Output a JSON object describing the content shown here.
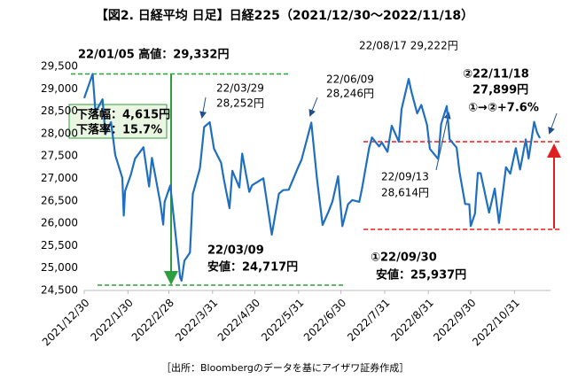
{
  "chart_data": {
    "type": "line",
    "title": "【図2. 日経平均 日足】日経225（2021/12/30～2022/11/18）",
    "source": "［出所：Bloombergのデータを基にアイザワ証券作成］",
    "xlim": [
      "2021/12/30",
      "2022/11/18"
    ],
    "xticks": [
      "2021/12/30",
      "2022/1/30",
      "2022/2/28",
      "2022/3/31",
      "2022/4/30",
      "2022/5/31",
      "2022/6/30",
      "2022/7/31",
      "2022/8/31",
      "2022/9/30",
      "2022/10/31"
    ],
    "ylim": [
      24500,
      29500
    ],
    "yticks": [
      {
        "value": 24500,
        "label": "24,500"
      },
      {
        "value": 25000,
        "label": "25,000"
      },
      {
        "value": 25500,
        "label": "25,500"
      },
      {
        "value": 26000,
        "label": "26,000"
      },
      {
        "value": 26500,
        "label": "26,500"
      },
      {
        "value": 27000,
        "label": "27,000"
      },
      {
        "value": 27500,
        "label": "27,500"
      },
      {
        "value": 28000,
        "label": "28,000"
      },
      {
        "value": 28500,
        "label": "28,500"
      },
      {
        "value": 29000,
        "label": "29,000"
      },
      {
        "value": 29500,
        "label": "29,500"
      }
    ],
    "x": [
      "2021/12/30",
      "2022/01/05",
      "2022/01/07",
      "2022/01/12",
      "2022/01/14",
      "2022/01/18",
      "2022/01/20",
      "2022/01/21",
      "2022/01/26",
      "2022/01/27",
      "2022/01/28",
      "2022/02/01",
      "2022/02/04",
      "2022/02/10",
      "2022/02/14",
      "2022/02/16",
      "2022/02/18",
      "2022/02/22",
      "2022/02/24",
      "2022/02/25",
      "2022/03/01",
      "2022/03/04",
      "2022/03/08",
      "2022/03/09",
      "2022/03/11",
      "2022/03/15",
      "2022/03/17",
      "2022/03/22",
      "2022/03/25",
      "2022/03/29",
      "2022/04/01",
      "2022/04/06",
      "2022/04/08",
      "2022/04/12",
      "2022/04/14",
      "2022/04/19",
      "2022/04/21",
      "2022/04/26",
      "2022/04/28",
      "2022/05/06",
      "2022/05/12",
      "2022/05/17",
      "2022/05/20",
      "2022/05/24",
      "2022/05/31",
      "2022/06/02",
      "2022/06/09",
      "2022/06/13",
      "2022/06/17",
      "2022/06/21",
      "2022/06/24",
      "2022/06/28",
      "2022/07/01",
      "2022/07/05",
      "2022/07/08",
      "2022/07/13",
      "2022/07/15",
      "2022/07/20",
      "2022/07/22",
      "2022/07/27",
      "2022/07/29",
      "2022/08/02",
      "2022/08/05",
      "2022/08/10",
      "2022/08/12",
      "2022/08/17",
      "2022/08/19",
      "2022/08/23",
      "2022/08/26",
      "2022/08/30",
      "2022/09/01",
      "2022/09/07",
      "2022/09/09",
      "2022/09/13",
      "2022/09/15",
      "2022/09/20",
      "2022/09/22",
      "2022/09/26",
      "2022/09/29",
      "2022/09/30",
      "2022/10/03",
      "2022/10/05",
      "2022/10/07",
      "2022/10/13",
      "2022/10/17",
      "2022/10/20",
      "2022/10/25",
      "2022/10/28",
      "2022/11/01",
      "2022/11/04",
      "2022/11/08",
      "2022/11/10",
      "2022/11/14",
      "2022/11/16",
      "2022/11/18"
    ],
    "series": [
      {
        "name": "日経225",
        "color": "#1f6fc0",
        "values": [
          28792,
          29332,
          28479,
          28765,
          27988,
          28257,
          27773,
          27522,
          27011,
          26170,
          26717,
          27078,
          27440,
          27696,
          26821,
          27460,
          27122,
          26449,
          25971,
          26476,
          26844,
          25985,
          24790,
          24717,
          25163,
          25346,
          26652,
          27224,
          28149,
          28252,
          27665,
          27350,
          26985,
          26335,
          27172,
          26799,
          27553,
          26700,
          26847,
          27003,
          25748,
          26659,
          26739,
          26748,
          27279,
          27413,
          28246,
          26987,
          25963,
          26246,
          26491,
          27049,
          25935,
          26423,
          26517,
          26478,
          26788,
          27680,
          27915,
          27715,
          27801,
          27594,
          28175,
          27819,
          28546,
          29222,
          28930,
          28452,
          28641,
          28195,
          27661,
          27430,
          28214,
          28614,
          27875,
          27688,
          27153,
          26431,
          26422,
          25937,
          26215,
          27120,
          27116,
          26237,
          26775,
          26006,
          27250,
          27105,
          27678,
          27199,
          27872,
          27446,
          28263,
          28028,
          27899
        ]
      }
    ],
    "annotations": [
      "22/01/05 高値：29,332円",
      "下落幅：4,615円",
      "下落率：15.7%",
      "22/03/29",
      "28,252円",
      "22/06/09",
      "28,246円",
      "22/08/17 29,222円",
      "②22/11/18",
      "27,899円",
      "①→②+7.6%",
      "22/09/13",
      "28,614円",
      "22/03/09",
      "安値：24,717円",
      "①22/09/30",
      "安値：25,937円"
    ]
  }
}
